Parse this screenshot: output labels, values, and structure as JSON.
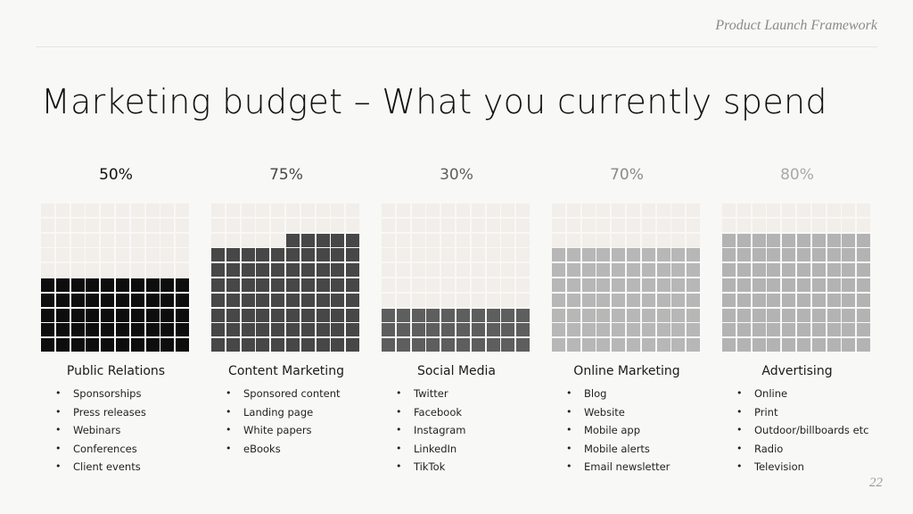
{
  "header": {
    "label": "Product Launch Framework"
  },
  "title": "Marketing budget – What you currently spend",
  "page_number": "22",
  "chart_data": {
    "type": "waffle",
    "grid": {
      "rows": 10,
      "cols": 10
    },
    "empty_color": "#f2eeea",
    "series": [
      {
        "name": "Public Relations",
        "value": 50,
        "label": "50%",
        "color": "#0d0d0d",
        "label_color": "#111111",
        "items": [
          "Sponsorships",
          "Press releases",
          "Webinars",
          "Conferences",
          "Client events"
        ]
      },
      {
        "name": "Content Marketing",
        "value": 75,
        "label": "75%",
        "color": "#474747",
        "label_color": "#474747",
        "items": [
          "Sponsored content",
          "Landing page",
          "White papers",
          "eBooks"
        ]
      },
      {
        "name": "Social Media",
        "value": 30,
        "label": "30%",
        "color": "#5e5e5e",
        "label_color": "#5e5e5e",
        "items": [
          "Twitter",
          "Facebook",
          "Instagram",
          "LinkedIn",
          "TikTok"
        ]
      },
      {
        "name": "Online Marketing",
        "value": 70,
        "label": "70%",
        "color": "#b7b7b7",
        "label_color": "#8a8a8a",
        "items": [
          "Blog",
          "Website",
          "Mobile app",
          "Mobile alerts",
          "Email newsletter"
        ]
      },
      {
        "name": "Advertising",
        "value": 80,
        "label": "80%",
        "color": "#b3b3b3",
        "label_color": "#a8a8a8",
        "items": [
          "Online",
          "Print",
          "Outdoor/billboards etc",
          "Radio",
          "Television"
        ]
      }
    ]
  }
}
